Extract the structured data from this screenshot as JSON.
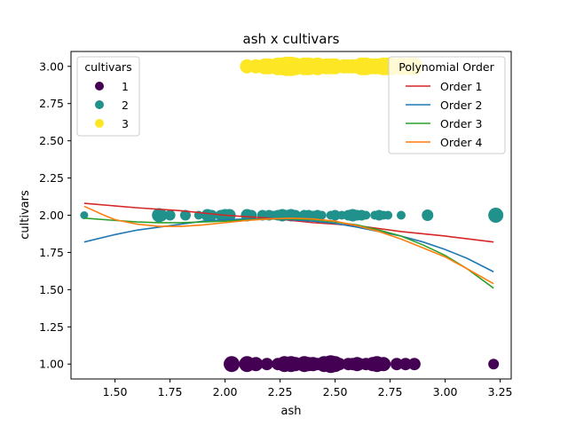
{
  "chart_data": {
    "type": "scatter",
    "title": "ash x cultivars",
    "xlabel": "ash",
    "ylabel": "cultivars",
    "xlim": [
      1.3,
      3.3
    ],
    "ylim": [
      0.9,
      3.1
    ],
    "xticks": [
      "1.50",
      "1.75",
      "2.00",
      "2.25",
      "2.50",
      "2.75",
      "3.00",
      "3.25"
    ],
    "xtick_values": [
      1.5,
      1.75,
      2.0,
      2.25,
      2.5,
      2.75,
      3.0,
      3.25
    ],
    "yticks": [
      "1.00",
      "1.25",
      "1.50",
      "1.75",
      "2.00",
      "2.25",
      "2.50",
      "2.75",
      "3.00"
    ],
    "ytick_values": [
      1.0,
      1.25,
      1.5,
      1.75,
      2.0,
      2.25,
      2.5,
      2.75,
      3.0
    ],
    "grid": false,
    "scatter_series": [
      {
        "name": "1",
        "color": "#440154",
        "points": [
          {
            "x": 2.03,
            "y": 1,
            "size": 9
          },
          {
            "x": 2.1,
            "y": 1,
            "size": 9
          },
          {
            "x": 2.14,
            "y": 1,
            "size": 8
          },
          {
            "x": 2.19,
            "y": 1,
            "size": 7
          },
          {
            "x": 2.24,
            "y": 1,
            "size": 7
          },
          {
            "x": 2.27,
            "y": 1,
            "size": 9
          },
          {
            "x": 2.3,
            "y": 1,
            "size": 9
          },
          {
            "x": 2.32,
            "y": 1,
            "size": 8
          },
          {
            "x": 2.36,
            "y": 1,
            "size": 9
          },
          {
            "x": 2.38,
            "y": 1,
            "size": 8
          },
          {
            "x": 2.4,
            "y": 1,
            "size": 8
          },
          {
            "x": 2.42,
            "y": 1,
            "size": 7
          },
          {
            "x": 2.45,
            "y": 1,
            "size": 9
          },
          {
            "x": 2.48,
            "y": 1,
            "size": 10
          },
          {
            "x": 2.5,
            "y": 1,
            "size": 9
          },
          {
            "x": 2.52,
            "y": 1,
            "size": 7
          },
          {
            "x": 2.56,
            "y": 1,
            "size": 7
          },
          {
            "x": 2.58,
            "y": 1,
            "size": 7
          },
          {
            "x": 2.6,
            "y": 1,
            "size": 8
          },
          {
            "x": 2.61,
            "y": 1,
            "size": 7
          },
          {
            "x": 2.64,
            "y": 1,
            "size": 7
          },
          {
            "x": 2.67,
            "y": 1,
            "size": 8
          },
          {
            "x": 2.69,
            "y": 1,
            "size": 9
          },
          {
            "x": 2.7,
            "y": 1,
            "size": 8
          },
          {
            "x": 2.72,
            "y": 1,
            "size": 8
          },
          {
            "x": 2.78,
            "y": 1,
            "size": 7
          },
          {
            "x": 2.82,
            "y": 1,
            "size": 7
          },
          {
            "x": 2.86,
            "y": 1,
            "size": 7
          },
          {
            "x": 3.22,
            "y": 1,
            "size": 6
          }
        ]
      },
      {
        "name": "2",
        "color": "#21918c",
        "points": [
          {
            "x": 1.36,
            "y": 2,
            "size": 4.5
          },
          {
            "x": 1.7,
            "y": 2,
            "size": 8
          },
          {
            "x": 1.71,
            "y": 2,
            "size": 7
          },
          {
            "x": 1.75,
            "y": 2,
            "size": 6
          },
          {
            "x": 1.82,
            "y": 2,
            "size": 6
          },
          {
            "x": 1.88,
            "y": 2,
            "size": 5
          },
          {
            "x": 1.92,
            "y": 2,
            "size": 7
          },
          {
            "x": 1.94,
            "y": 2,
            "size": 6
          },
          {
            "x": 1.98,
            "y": 2,
            "size": 6
          },
          {
            "x": 2.0,
            "y": 2,
            "size": 7
          },
          {
            "x": 2.02,
            "y": 2,
            "size": 7
          },
          {
            "x": 2.1,
            "y": 2,
            "size": 7
          },
          {
            "x": 2.12,
            "y": 2,
            "size": 6
          },
          {
            "x": 2.17,
            "y": 2,
            "size": 6
          },
          {
            "x": 2.2,
            "y": 2,
            "size": 6
          },
          {
            "x": 2.22,
            "y": 2,
            "size": 5
          },
          {
            "x": 2.24,
            "y": 2,
            "size": 6
          },
          {
            "x": 2.26,
            "y": 2,
            "size": 7
          },
          {
            "x": 2.28,
            "y": 2,
            "size": 6
          },
          {
            "x": 2.3,
            "y": 2,
            "size": 7
          },
          {
            "x": 2.32,
            "y": 2,
            "size": 6
          },
          {
            "x": 2.36,
            "y": 2,
            "size": 6
          },
          {
            "x": 2.38,
            "y": 2,
            "size": 6
          },
          {
            "x": 2.4,
            "y": 2,
            "size": 5
          },
          {
            "x": 2.42,
            "y": 2,
            "size": 6
          },
          {
            "x": 2.44,
            "y": 2,
            "size": 5
          },
          {
            "x": 2.48,
            "y": 2,
            "size": 5
          },
          {
            "x": 2.5,
            "y": 2,
            "size": 6
          },
          {
            "x": 2.53,
            "y": 2,
            "size": 5
          },
          {
            "x": 2.56,
            "y": 2,
            "size": 6
          },
          {
            "x": 2.58,
            "y": 2,
            "size": 7
          },
          {
            "x": 2.6,
            "y": 2,
            "size": 6
          },
          {
            "x": 2.62,
            "y": 2,
            "size": 6
          },
          {
            "x": 2.64,
            "y": 2,
            "size": 5
          },
          {
            "x": 2.68,
            "y": 2,
            "size": 5
          },
          {
            "x": 2.7,
            "y": 2,
            "size": 6
          },
          {
            "x": 2.72,
            "y": 2,
            "size": 5
          },
          {
            "x": 2.74,
            "y": 2,
            "size": 5
          },
          {
            "x": 2.8,
            "y": 2,
            "size": 5
          },
          {
            "x": 2.92,
            "y": 2,
            "size": 6.5
          },
          {
            "x": 3.23,
            "y": 2,
            "size": 8.5
          }
        ]
      },
      {
        "name": "3",
        "color": "#fde725",
        "points": [
          {
            "x": 2.1,
            "y": 3,
            "size": 8
          },
          {
            "x": 2.14,
            "y": 3,
            "size": 8
          },
          {
            "x": 2.18,
            "y": 3,
            "size": 9
          },
          {
            "x": 2.2,
            "y": 3,
            "size": 9
          },
          {
            "x": 2.24,
            "y": 3,
            "size": 10
          },
          {
            "x": 2.26,
            "y": 3,
            "size": 10
          },
          {
            "x": 2.28,
            "y": 3,
            "size": 11
          },
          {
            "x": 2.3,
            "y": 3,
            "size": 11
          },
          {
            "x": 2.32,
            "y": 3,
            "size": 10
          },
          {
            "x": 2.36,
            "y": 3,
            "size": 10
          },
          {
            "x": 2.38,
            "y": 3,
            "size": 10
          },
          {
            "x": 2.4,
            "y": 3,
            "size": 9
          },
          {
            "x": 2.42,
            "y": 3,
            "size": 10
          },
          {
            "x": 2.44,
            "y": 3,
            "size": 8
          },
          {
            "x": 2.46,
            "y": 3,
            "size": 9
          },
          {
            "x": 2.48,
            "y": 3,
            "size": 9
          },
          {
            "x": 2.5,
            "y": 3,
            "size": 9
          },
          {
            "x": 2.54,
            "y": 3,
            "size": 8
          },
          {
            "x": 2.56,
            "y": 3,
            "size": 8
          },
          {
            "x": 2.58,
            "y": 3,
            "size": 8
          },
          {
            "x": 2.6,
            "y": 3,
            "size": 8
          },
          {
            "x": 2.62,
            "y": 3,
            "size": 10
          },
          {
            "x": 2.64,
            "y": 3,
            "size": 10
          },
          {
            "x": 2.66,
            "y": 3,
            "size": 9
          },
          {
            "x": 2.68,
            "y": 3,
            "size": 9
          },
          {
            "x": 2.7,
            "y": 3,
            "size": 9
          },
          {
            "x": 2.72,
            "y": 3,
            "size": 10
          },
          {
            "x": 2.74,
            "y": 3,
            "size": 10
          },
          {
            "x": 2.76,
            "y": 3,
            "size": 10
          },
          {
            "x": 2.8,
            "y": 3,
            "size": 10
          },
          {
            "x": 2.84,
            "y": 3,
            "size": 10
          },
          {
            "x": 2.86,
            "y": 3,
            "size": 10
          }
        ]
      }
    ],
    "line_series": [
      {
        "name": "Order 1",
        "color": "#d62728",
        "x": [
          1.36,
          1.6,
          1.8,
          2.0,
          2.2,
          2.4,
          2.6,
          2.8,
          3.0,
          3.22
        ],
        "y": [
          2.08,
          2.05,
          2.03,
          2.0,
          1.98,
          1.95,
          1.93,
          1.89,
          1.86,
          1.82
        ]
      },
      {
        "name": "Order 2",
        "color": "#1f77b4",
        "x": [
          1.36,
          1.5,
          1.6,
          1.7,
          1.8,
          1.9,
          2.0,
          2.1,
          2.2,
          2.3,
          2.4,
          2.5,
          2.6,
          2.7,
          2.8,
          2.9,
          3.0,
          3.1,
          3.22
        ],
        "y": [
          1.82,
          1.87,
          1.9,
          1.92,
          1.94,
          1.96,
          1.97,
          1.975,
          1.975,
          1.97,
          1.96,
          1.945,
          1.92,
          1.89,
          1.86,
          1.82,
          1.77,
          1.71,
          1.62
        ]
      },
      {
        "name": "Order 3",
        "color": "#2ca02c",
        "x": [
          1.36,
          1.5,
          1.6,
          1.7,
          1.8,
          1.9,
          2.0,
          2.1,
          2.2,
          2.3,
          2.4,
          2.5,
          2.6,
          2.7,
          2.8,
          2.9,
          3.0,
          3.1,
          3.22
        ],
        "y": [
          1.98,
          1.965,
          1.955,
          1.95,
          1.95,
          1.955,
          1.96,
          1.97,
          1.975,
          1.975,
          1.97,
          1.955,
          1.935,
          1.9,
          1.86,
          1.8,
          1.73,
          1.64,
          1.51
        ]
      },
      {
        "name": "Order 4",
        "color": "#ff7f0e",
        "x": [
          1.36,
          1.45,
          1.5,
          1.6,
          1.7,
          1.8,
          1.9,
          2.0,
          2.1,
          2.2,
          2.3,
          2.4,
          2.5,
          2.6,
          2.7,
          2.8,
          2.9,
          3.0,
          3.1,
          3.22
        ],
        "y": [
          2.06,
          2.0,
          1.97,
          1.94,
          1.925,
          1.925,
          1.935,
          1.95,
          1.965,
          1.975,
          1.98,
          1.975,
          1.96,
          1.93,
          1.89,
          1.84,
          1.78,
          1.72,
          1.64,
          1.54
        ]
      }
    ],
    "legends": {
      "cultivars": {
        "title": "cultivars",
        "placement": "upper-left",
        "entries": [
          "1",
          "2",
          "3"
        ]
      },
      "polynomial": {
        "title": "Polynomial Order",
        "placement": "upper-right",
        "entries": [
          "Order 1",
          "Order 2",
          "Order 3",
          "Order 4"
        ]
      }
    }
  }
}
